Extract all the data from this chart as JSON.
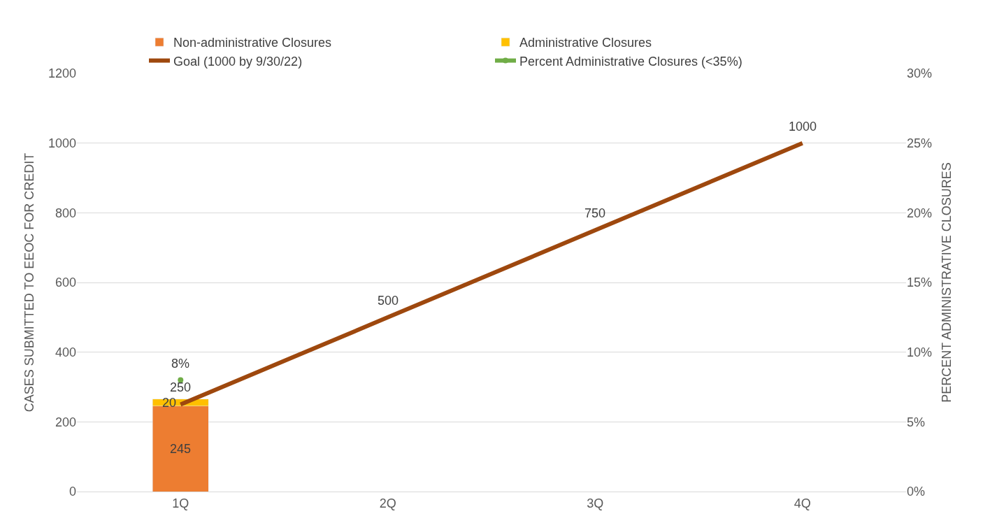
{
  "chart_data": {
    "type": "bar",
    "stacked": true,
    "ylabel": "CASES SUBMITTED TO EEOC FOR CREDIT",
    "y2label": "PERCENT ADMINISTRATIVE CLOSURES",
    "categories": [
      "1Q",
      "2Q",
      "3Q",
      "4Q"
    ],
    "series": [
      {
        "name": "Non-administrative Closures",
        "color": "#ed7d31",
        "values": [
          245,
          null,
          null,
          null
        ]
      },
      {
        "name": "Administrative Closures",
        "color": "#ffc000",
        "values": [
          20,
          null,
          null,
          null
        ]
      },
      {
        "name": "Goal (1000 by 9/30/22)",
        "type": "line",
        "color": "#9e480e",
        "values": [
          250,
          500,
          750,
          1000
        ]
      },
      {
        "name": "Percent Administrative Closures (<35%)",
        "type": "line",
        "axis": "y2",
        "color": "#70ad47",
        "values": [
          8,
          null,
          null,
          null
        ],
        "marker": "circle",
        "value_labels": [
          "8%",
          null,
          null,
          null
        ]
      }
    ],
    "data_labels": true,
    "ylim": [
      0,
      1200
    ],
    "yticks": [
      0,
      200,
      400,
      600,
      800,
      1000,
      1200
    ],
    "y2lim": [
      0,
      30
    ],
    "y2ticks": [
      {
        "value": 0,
        "label": "0%"
      },
      {
        "value": 5,
        "label": "5%"
      },
      {
        "value": 10,
        "label": "10%"
      },
      {
        "value": 15,
        "label": "15%"
      },
      {
        "value": 20,
        "label": "20%"
      },
      {
        "value": 25,
        "label": "25%"
      },
      {
        "value": 30,
        "label": "30%"
      }
    ],
    "grid": "y",
    "legend": "top"
  }
}
